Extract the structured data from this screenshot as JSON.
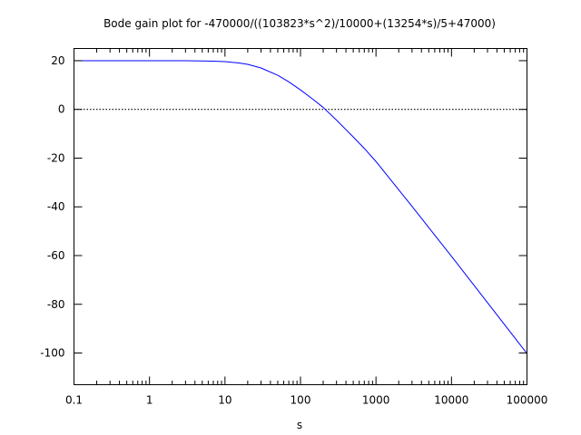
{
  "chart_data": {
    "type": "line",
    "title": "Bode gain plot for -470000/((103823*s^2)/10000+(13254*s)/5+47000)",
    "xlabel": "s",
    "ylabel": "",
    "x_scale": "log",
    "xlim": [
      0.1,
      100000
    ],
    "ylim": [
      -113,
      25
    ],
    "x_ticks": [
      {
        "value": 0.1,
        "label": "0.1"
      },
      {
        "value": 1,
        "label": "1"
      },
      {
        "value": 10,
        "label": "10"
      },
      {
        "value": 100,
        "label": "100"
      },
      {
        "value": 1000,
        "label": "1000"
      },
      {
        "value": 10000,
        "label": "10000"
      },
      {
        "value": 100000,
        "label": "100000"
      }
    ],
    "y_ticks": [
      {
        "value": 20,
        "label": "20"
      },
      {
        "value": 0,
        "label": "0"
      },
      {
        "value": -20,
        "label": "-20"
      },
      {
        "value": -40,
        "label": "-40"
      },
      {
        "value": -60,
        "label": "-60"
      },
      {
        "value": -80,
        "label": "-80"
      },
      {
        "value": -100,
        "label": "-100"
      }
    ],
    "zero_line": {
      "value": 0,
      "style": "dotted",
      "color": "#000000"
    },
    "grid": false,
    "series": [
      {
        "color": "#0000ff",
        "x": [
          0.1,
          0.3,
          1,
          2,
          3,
          5,
          7,
          10,
          15,
          20,
          30,
          50,
          70,
          100,
          150,
          200,
          300,
          500,
          700,
          1000,
          2000,
          3000,
          5000,
          10000,
          20000,
          50000,
          100000
        ],
        "y": [
          20.0,
          20.0,
          20.0,
          20.0,
          20.0,
          19.9,
          19.8,
          19.6,
          19.1,
          18.5,
          17.0,
          14.0,
          11.3,
          8.0,
          3.9,
          0.8,
          -4.4,
          -11.3,
          -16.0,
          -21.4,
          -33.0,
          -39.8,
          -48.5,
          -60.3,
          -72.3,
          -88.2,
          -100.2
        ]
      }
    ]
  }
}
